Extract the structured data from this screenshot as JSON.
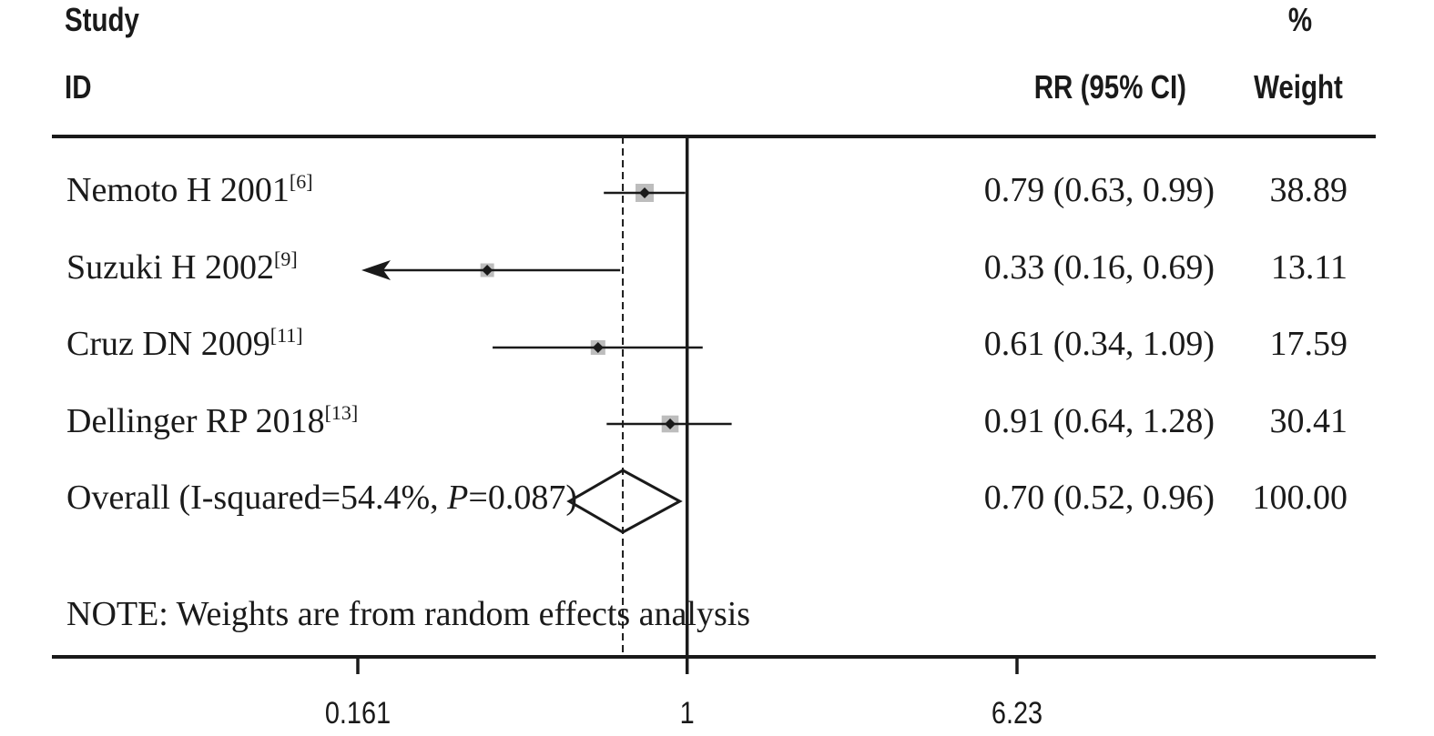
{
  "chart_data": {
    "type": "forest",
    "header": {
      "study_line1": "Study",
      "study_line2": "ID",
      "rr_label": "RR (95% CI)",
      "weight_line1": "%",
      "weight_line2": "Weight"
    },
    "studies": [
      {
        "name": "Nemoto H 2001",
        "ref": "[6]",
        "rr": 0.79,
        "lo": 0.63,
        "hi": 0.99,
        "ci_text": "0.79 (0.63, 0.99)",
        "weight": "38.89"
      },
      {
        "name": "Suzuki H 2002",
        "ref": "[9]",
        "rr": 0.33,
        "lo": 0.16,
        "hi": 0.69,
        "ci_text": "0.33 (0.16, 0.69)",
        "weight": "13.11"
      },
      {
        "name": "Cruz DN 2009",
        "ref": "[11]",
        "rr": 0.61,
        "lo": 0.34,
        "hi": 1.09,
        "ci_text": "0.61 (0.34, 1.09)",
        "weight": "17.59"
      },
      {
        "name": "Dellinger RP 2018",
        "ref": "[13]",
        "rr": 0.91,
        "lo": 0.64,
        "hi": 1.28,
        "ci_text": "0.91 (0.64, 1.28)",
        "weight": "30.41"
      }
    ],
    "overall": {
      "label_prefix": "Overall  (I-squared=54.4%, ",
      "label_p": "P",
      "label_suffix": "=0.087)",
      "rr": 0.7,
      "lo": 0.52,
      "hi": 0.96,
      "ci_text": "0.70 (0.52, 0.96)",
      "weight": "100.00"
    },
    "note": "NOTE: Weights are from random effects analysis",
    "x_axis": {
      "scale": "log",
      "range": [
        0.161,
        6.23
      ],
      "ticks": [
        {
          "value": 0.161,
          "label": "0.161"
        },
        {
          "value": 1,
          "label": "1"
        },
        {
          "value": 6.23,
          "label": "6.23"
        }
      ],
      "null_line": 1
    },
    "colors": {
      "line": "#1a1a1a",
      "weight_box": "#bdbdbd"
    }
  }
}
